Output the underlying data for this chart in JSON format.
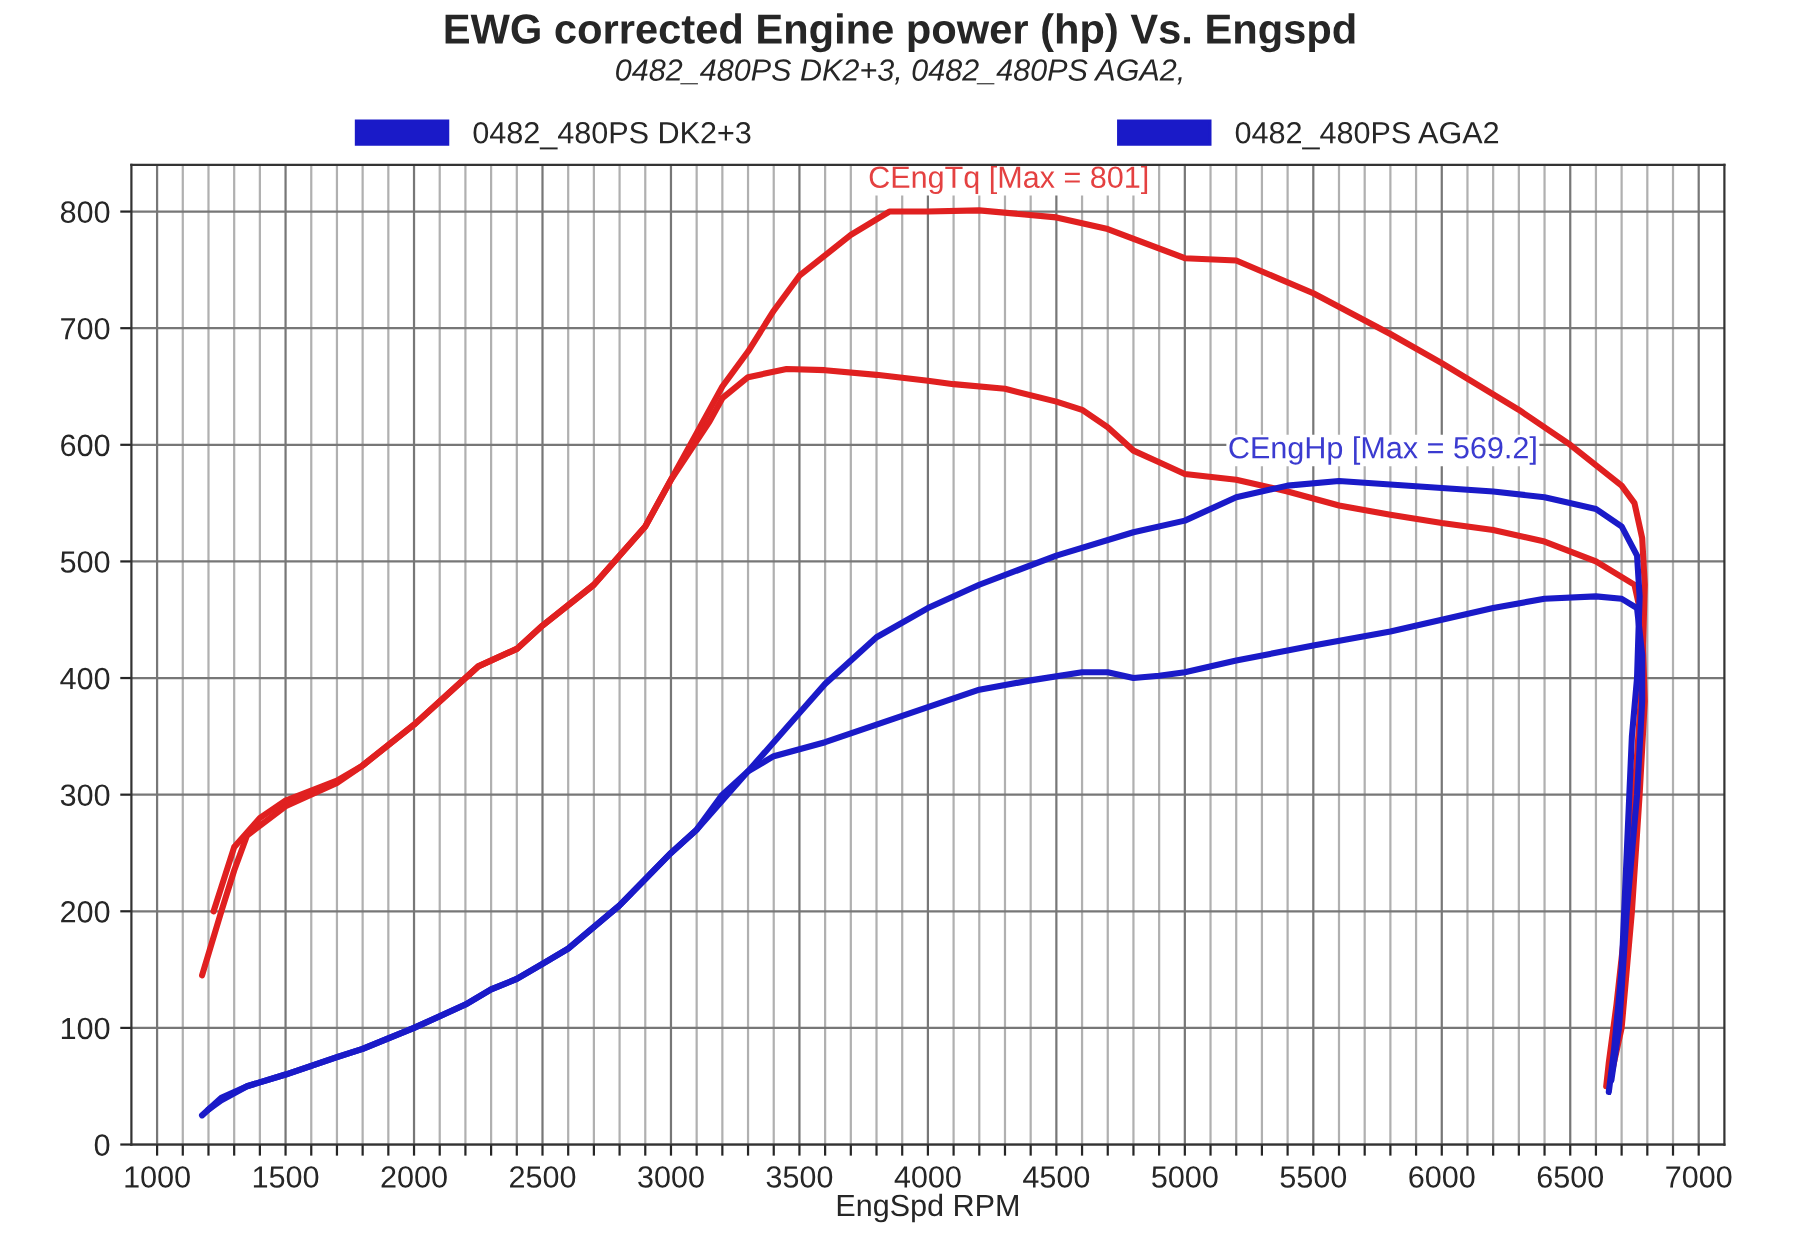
{
  "chart_data": {
    "type": "line",
    "title": "EWG corrected Engine power (hp) Vs. Engspd",
    "subtitle": "0482_480PS DK2+3, 0482_480PS AGA2,",
    "xlabel": "EngSpd RPM",
    "xlim": [
      900,
      7100
    ],
    "ylim": [
      0,
      840
    ],
    "xticks": [
      1000,
      {
        "value": 1100,
        "label": null
      },
      {
        "value": 1200,
        "label": null
      },
      {
        "value": 1300,
        "label": null
      },
      {
        "value": 1400,
        "label": null
      },
      1500,
      {
        "value": 1600,
        "label": null
      },
      {
        "value": 1700,
        "label": null
      },
      {
        "value": 1800,
        "label": null
      },
      {
        "value": 1900,
        "label": null
      },
      2000,
      {
        "value": 2100,
        "label": null
      },
      {
        "value": 2200,
        "label": null
      },
      {
        "value": 2300,
        "label": null
      },
      {
        "value": 2400,
        "label": null
      },
      2500,
      {
        "value": 2600,
        "label": null
      },
      {
        "value": 2700,
        "label": null
      },
      {
        "value": 2800,
        "label": null
      },
      {
        "value": 2900,
        "label": null
      },
      3000,
      {
        "value": 3100,
        "label": null
      },
      {
        "value": 3200,
        "label": null
      },
      {
        "value": 3300,
        "label": null
      },
      {
        "value": 3400,
        "label": null
      },
      3500,
      {
        "value": 3600,
        "label": null
      },
      {
        "value": 3700,
        "label": null
      },
      {
        "value": 3800,
        "label": null
      },
      {
        "value": 3900,
        "label": null
      },
      4000,
      {
        "value": 4100,
        "label": null
      },
      {
        "value": 4200,
        "label": null
      },
      {
        "value": 4300,
        "label": null
      },
      {
        "value": 4400,
        "label": null
      },
      4500,
      {
        "value": 4600,
        "label": null
      },
      {
        "value": 4700,
        "label": null
      },
      {
        "value": 4800,
        "label": null
      },
      {
        "value": 4900,
        "label": null
      },
      5000,
      {
        "value": 5100,
        "label": null
      },
      {
        "value": 5200,
        "label": null
      },
      {
        "value": 5300,
        "label": null
      },
      {
        "value": 5400,
        "label": null
      },
      5500,
      {
        "value": 5600,
        "label": null
      },
      {
        "value": 5700,
        "label": null
      },
      {
        "value": 5800,
        "label": null
      },
      {
        "value": 5900,
        "label": null
      },
      6000,
      {
        "value": 6100,
        "label": null
      },
      {
        "value": 6200,
        "label": null
      },
      {
        "value": 6300,
        "label": null
      },
      {
        "value": 6400,
        "label": null
      },
      6500,
      {
        "value": 6600,
        "label": null
      },
      {
        "value": 6700,
        "label": null
      },
      {
        "value": 6800,
        "label": null
      },
      {
        "value": 6900,
        "label": null
      },
      7000
    ],
    "yticks": [
      0,
      100,
      200,
      300,
      400,
      500,
      600,
      700,
      800
    ],
    "grid": true,
    "legend": "top",
    "marker": "none",
    "line_style": "solid",
    "annotations": [
      "CEngTq [Max = 801]",
      "CEngHp [Max = 569.2]"
    ],
    "series": [
      {
        "color": "#e02020",
        "x": [
          1175,
          1250,
          1300,
          1350,
          1500,
          1700,
          1800,
          2000,
          2250,
          2400,
          2500,
          2700,
          2900,
          3000,
          3100,
          3200,
          3300,
          3400,
          3500,
          3700,
          3850,
          4000,
          4200,
          4500,
          4700,
          5000,
          5200,
          5500,
          5800,
          6000,
          6300,
          6500,
          6700,
          6750,
          6780,
          6790,
          6780,
          6750,
          6720,
          6680,
          6650,
          6640
        ],
        "values": [
          145,
          200,
          235,
          265,
          290,
          310,
          325,
          360,
          410,
          425,
          445,
          480,
          530,
          570,
          610,
          650,
          680,
          715,
          745,
          780,
          800,
          800,
          801,
          795,
          785,
          760,
          758,
          730,
          695,
          670,
          630,
          600,
          565,
          550,
          520,
          480,
          400,
          300,
          200,
          120,
          70,
          50
        ]
      },
      {
        "color": "#e02020",
        "x": [
          1220,
          1300,
          1320,
          1400,
          1500,
          1700,
          1800,
          2000,
          2250,
          2400,
          2500,
          2700,
          2900,
          3000,
          3150,
          3200,
          3300,
          3450,
          3600,
          3800,
          4000,
          4100,
          4300,
          4500,
          4600,
          4700,
          4800,
          4900,
          5000,
          5200,
          5400,
          5600,
          5800,
          6000,
          6200,
          6400,
          6600,
          6750,
          6780,
          6790,
          6770,
          6740,
          6700,
          6660
        ],
        "values": [
          200,
          255,
          260,
          280,
          295,
          312,
          325,
          360,
          410,
          425,
          445,
          480,
          530,
          570,
          620,
          640,
          658,
          665,
          664,
          660,
          655,
          652,
          648,
          637,
          630,
          615,
          595,
          585,
          575,
          570,
          560,
          548,
          540,
          533,
          527,
          517,
          500,
          480,
          450,
          380,
          300,
          200,
          100,
          60
        ]
      },
      {
        "name": "0482_480PS DK2+3",
        "color": "#1a1ac8",
        "x": [
          1175,
          1250,
          1350,
          1500,
          1700,
          1800,
          2000,
          2200,
          2300,
          2400,
          2500,
          2600,
          2800,
          3000,
          3100,
          3200,
          3300,
          3400,
          3500,
          3600,
          3800,
          4000,
          4200,
          4500,
          4800,
          5000,
          5200,
          5400,
          5600,
          5800,
          6000,
          6200,
          6400,
          6600,
          6700,
          6760,
          6770,
          6760,
          6740,
          6720,
          6700,
          6670,
          6650
        ],
        "values": [
          25,
          40,
          50,
          60,
          75,
          82,
          100,
          120,
          133,
          142,
          155,
          168,
          205,
          250,
          270,
          295,
          320,
          345,
          370,
          395,
          435,
          460,
          480,
          505,
          525,
          535,
          555,
          565,
          569,
          566,
          563,
          560,
          555,
          545,
          530,
          505,
          470,
          400,
          350,
          250,
          150,
          80,
          45
        ]
      },
      {
        "name": "0482_480PS AGA2",
        "color": "#1a1ac8",
        "x": [
          1200,
          1250,
          1350,
          1500,
          1700,
          1800,
          2000,
          2200,
          2300,
          2400,
          2500,
          2600,
          2800,
          3000,
          3100,
          3200,
          3300,
          3400,
          3600,
          3800,
          4000,
          4200,
          4400,
          4600,
          4700,
          4800,
          4900,
          5000,
          5200,
          5500,
          5800,
          6000,
          6200,
          6400,
          6600,
          6700,
          6760,
          6780,
          6780,
          6760,
          6720,
          6690,
          6660
        ],
        "values": [
          30,
          38,
          50,
          60,
          75,
          82,
          100,
          120,
          133,
          142,
          155,
          168,
          205,
          250,
          270,
          300,
          320,
          333,
          345,
          360,
          375,
          390,
          398,
          405,
          405,
          400,
          402,
          405,
          415,
          428,
          440,
          450,
          460,
          468,
          470,
          468,
          460,
          420,
          380,
          300,
          200,
          100,
          55
        ]
      }
    ]
  }
}
